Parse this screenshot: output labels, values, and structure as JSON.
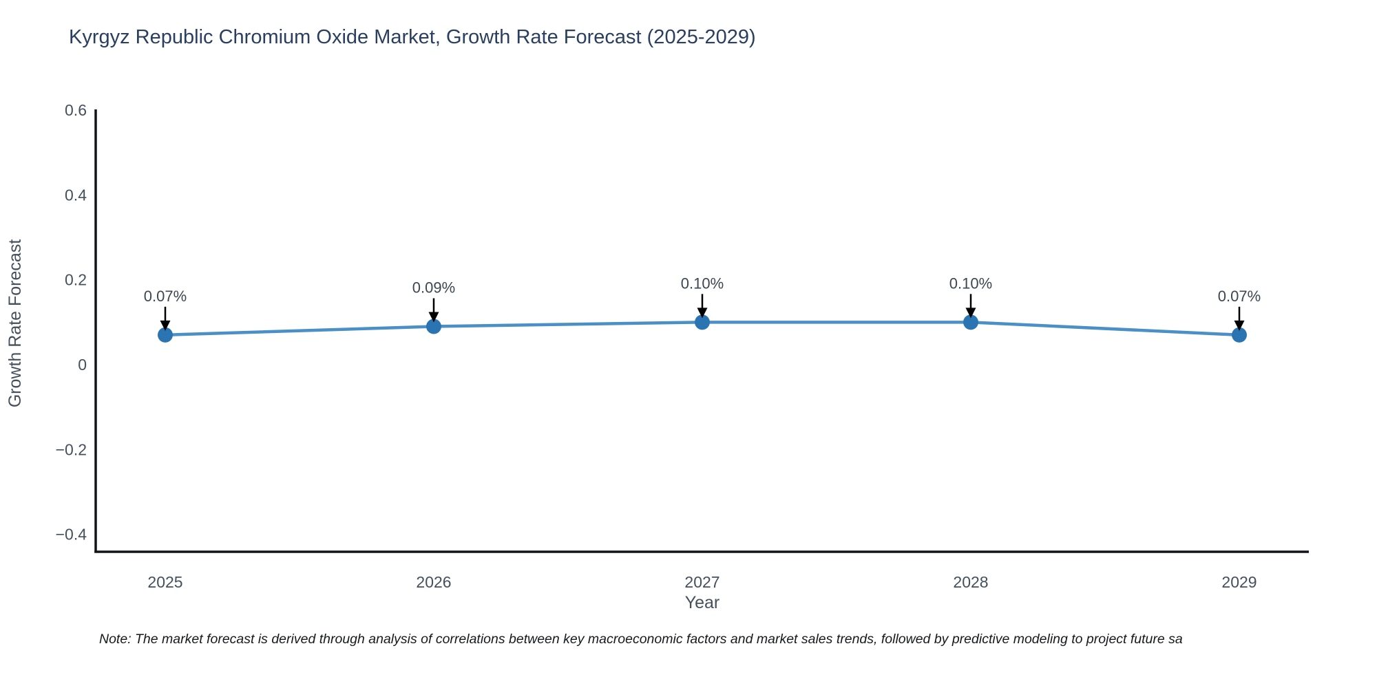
{
  "title": "Kyrgyz Republic Chromium Oxide Market, Growth Rate Forecast (2025-2029)",
  "note": "Note: The market forecast is derived through analysis of correlations between key macroeconomic factors and market sales trends, followed by predictive modeling to project future sa",
  "chart_data": {
    "type": "line",
    "title": "Kyrgyz Republic Chromium Oxide Market, Growth Rate Forecast (2025-2029)",
    "xlabel": "Year",
    "ylabel": "Growth Rate Forecast",
    "x": [
      2025,
      2026,
      2027,
      2028,
      2029
    ],
    "y": [
      0.07,
      0.09,
      0.1,
      0.1,
      0.07
    ],
    "series": [
      {
        "name": "Growth Rate Forecast",
        "values": [
          0.07,
          0.09,
          0.1,
          0.1,
          0.07
        ]
      }
    ],
    "point_labels": [
      "0.07%",
      "0.09%",
      "0.10%",
      "0.10%",
      "0.07%"
    ],
    "xtick_labels": [
      "2025",
      "2026",
      "2027",
      "2028",
      "2029"
    ],
    "yticks": [
      0.6,
      0.4,
      0.2,
      0,
      -0.2,
      -0.4
    ],
    "ytick_labels": [
      "0.6",
      "0.4",
      "0.2",
      "0",
      "−0.2",
      "−0.4"
    ],
    "ylim": [
      -0.443,
      0.6
    ],
    "grid": false,
    "legend_position": "none",
    "line_color": "#4a8fc6",
    "marker_color": "#2b74b2",
    "axis_color": "#101418",
    "arrow_color": "#000000"
  }
}
